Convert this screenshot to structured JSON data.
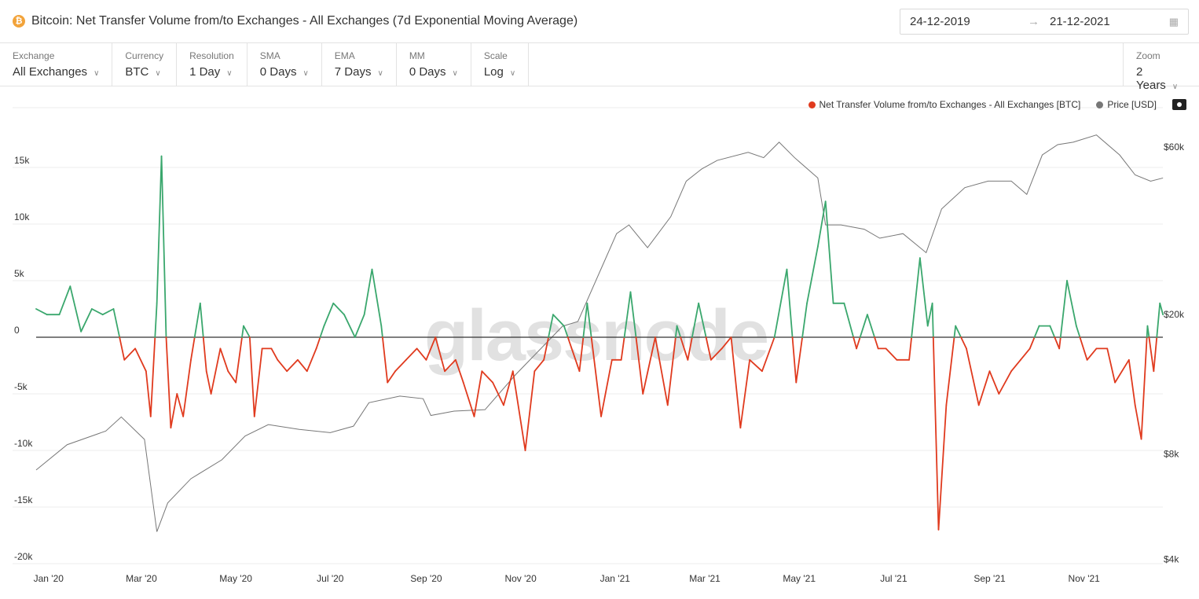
{
  "header": {
    "title": "Bitcoin: Net Transfer Volume from/to Exchanges - All Exchanges (7d Exponential Moving Average)",
    "coin_icon": "₿",
    "date_from": "24-12-2019",
    "date_to": "21-12-2021"
  },
  "toolbar": [
    {
      "label": "Exchange",
      "value": "All Exchanges"
    },
    {
      "label": "Currency",
      "value": "BTC"
    },
    {
      "label": "Resolution",
      "value": "1 Day"
    },
    {
      "label": "SMA",
      "value": "0 Days"
    },
    {
      "label": "EMA",
      "value": "7 Days"
    },
    {
      "label": "MM",
      "value": "0 Days"
    },
    {
      "label": "Scale",
      "value": "Log"
    }
  ],
  "zoom": {
    "label": "Zoom",
    "value": "2 Years"
  },
  "watermark": "glassnode",
  "colors": {
    "positive": "#3aa76d",
    "negative": "#e03a1e",
    "price": "#777777"
  },
  "chart_data": {
    "type": "line",
    "title": "Bitcoin: Net Transfer Volume from/to Exchanges - All Exchanges (7d Exponential Moving Average)",
    "x_unit": "days since 2019-12-24",
    "legend": [
      "Net Transfer Volume from/to Exchanges - All Exchanges [BTC]",
      "Price [USD]"
    ],
    "legend_placement": "top-right",
    "left_axis": {
      "ylim": [
        -20000,
        20000
      ],
      "ticks": [
        {
          "v": 15000,
          "label": "15k"
        },
        {
          "v": 10000,
          "label": "10k"
        },
        {
          "v": 5000,
          "label": "5k"
        },
        {
          "v": 0,
          "label": "0"
        },
        {
          "v": -5000,
          "label": "-5k"
        },
        {
          "v": -10000,
          "label": "-10k"
        },
        {
          "v": -15000,
          "label": "-15k"
        },
        {
          "v": -20000,
          "label": "-20k"
        }
      ]
    },
    "right_axis": {
      "scale": "log",
      "ticks": [
        {
          "v": 60000,
          "label": "$60k"
        },
        {
          "v": 20000,
          "label": "$20k"
        },
        {
          "v": 8000,
          "label": "$8k"
        },
        {
          "v": 4000,
          "label": "$4k"
        }
      ]
    },
    "x_ticks": [
      {
        "d": 8,
        "label": "Jan '20"
      },
      {
        "d": 68,
        "label": "Mar '20"
      },
      {
        "d": 129,
        "label": "May '20"
      },
      {
        "d": 190,
        "label": "Jul '20"
      },
      {
        "d": 252,
        "label": "Sep '20"
      },
      {
        "d": 313,
        "label": "Nov '20"
      },
      {
        "d": 374,
        "label": "Jan '21"
      },
      {
        "d": 432,
        "label": "Mar '21"
      },
      {
        "d": 493,
        "label": "May '21"
      },
      {
        "d": 554,
        "label": "Jul '21"
      },
      {
        "d": 616,
        "label": "Sep '21"
      },
      {
        "d": 677,
        "label": "Nov '21"
      }
    ],
    "net_volume": [
      [
        0,
        2500
      ],
      [
        7,
        2000
      ],
      [
        15,
        2000
      ],
      [
        22,
        4500
      ],
      [
        29,
        500
      ],
      [
        36,
        2500
      ],
      [
        43,
        2000
      ],
      [
        50,
        2500
      ],
      [
        57,
        -2000
      ],
      [
        64,
        -1000
      ],
      [
        71,
        -3000
      ],
      [
        74,
        -7000
      ],
      [
        78,
        3000
      ],
      [
        81,
        16000
      ],
      [
        84,
        0
      ],
      [
        87,
        -8000
      ],
      [
        91,
        -5000
      ],
      [
        95,
        -7000
      ],
      [
        100,
        -2000
      ],
      [
        106,
        3000
      ],
      [
        110,
        -3000
      ],
      [
        113,
        -5000
      ],
      [
        119,
        -1000
      ],
      [
        124,
        -3000
      ],
      [
        129,
        -4000
      ],
      [
        134,
        1000
      ],
      [
        138,
        0
      ],
      [
        141,
        -7000
      ],
      [
        146,
        -1000
      ],
      [
        152,
        -1000
      ],
      [
        156,
        -2000
      ],
      [
        162,
        -3000
      ],
      [
        169,
        -2000
      ],
      [
        175,
        -3000
      ],
      [
        181,
        -1000
      ],
      [
        186,
        1000
      ],
      [
        192,
        3000
      ],
      [
        199,
        2000
      ],
      [
        206,
        0
      ],
      [
        212,
        2000
      ],
      [
        217,
        6000
      ],
      [
        223,
        1000
      ],
      [
        227,
        -4000
      ],
      [
        232,
        -3000
      ],
      [
        239,
        -2000
      ],
      [
        246,
        -1000
      ],
      [
        252,
        -2000
      ],
      [
        258,
        0
      ],
      [
        264,
        -3000
      ],
      [
        271,
        -2000
      ],
      [
        276,
        -4000
      ],
      [
        283,
        -7000
      ],
      [
        288,
        -3000
      ],
      [
        295,
        -4000
      ],
      [
        302,
        -6000
      ],
      [
        308,
        -3000
      ],
      [
        316,
        -10000
      ],
      [
        322,
        -3000
      ],
      [
        328,
        -2000
      ],
      [
        334,
        2000
      ],
      [
        341,
        1000
      ],
      [
        346,
        -1000
      ],
      [
        351,
        -3000
      ],
      [
        356,
        3000
      ],
      [
        365,
        -7000
      ],
      [
        372,
        -2000
      ],
      [
        378,
        -2000
      ],
      [
        384,
        4000
      ],
      [
        392,
        -5000
      ],
      [
        400,
        0
      ],
      [
        408,
        -6000
      ],
      [
        414,
        1000
      ],
      [
        421,
        -2000
      ],
      [
        428,
        3000
      ],
      [
        436,
        -2000
      ],
      [
        443,
        -1000
      ],
      [
        449,
        0
      ],
      [
        455,
        -8000
      ],
      [
        461,
        -2000
      ],
      [
        469,
        -3000
      ],
      [
        477,
        0
      ],
      [
        485,
        6000
      ],
      [
        491,
        -4000
      ],
      [
        498,
        3000
      ],
      [
        505,
        8000
      ],
      [
        510,
        12000
      ],
      [
        515,
        3000
      ],
      [
        522,
        3000
      ],
      [
        530,
        -1000
      ],
      [
        537,
        2000
      ],
      [
        544,
        -1000
      ],
      [
        549,
        -1000
      ],
      [
        556,
        -2000
      ],
      [
        564,
        -2000
      ],
      [
        571,
        7000
      ],
      [
        576,
        1000
      ],
      [
        579,
        3000
      ],
      [
        583,
        -17000
      ],
      [
        588,
        -6000
      ],
      [
        594,
        1000
      ],
      [
        601,
        -1000
      ],
      [
        609,
        -6000
      ],
      [
        616,
        -3000
      ],
      [
        622,
        -5000
      ],
      [
        630,
        -3000
      ],
      [
        636,
        -2000
      ],
      [
        642,
        -1000
      ],
      [
        648,
        1000
      ],
      [
        655,
        1000
      ],
      [
        661,
        -1000
      ],
      [
        666,
        5000
      ],
      [
        672,
        1000
      ],
      [
        679,
        -2000
      ],
      [
        685,
        -1000
      ],
      [
        692,
        -1000
      ],
      [
        697,
        -4000
      ],
      [
        706,
        -2000
      ],
      [
        710,
        -6000
      ],
      [
        714,
        -9000
      ],
      [
        718,
        1000
      ],
      [
        722,
        -3000
      ],
      [
        726,
        3000
      ],
      [
        728,
        2000
      ]
    ],
    "price": [
      [
        0,
        7200
      ],
      [
        20,
        8500
      ],
      [
        45,
        9300
      ],
      [
        55,
        10200
      ],
      [
        70,
        8800
      ],
      [
        78,
        4800
      ],
      [
        85,
        5800
      ],
      [
        100,
        6800
      ],
      [
        120,
        7700
      ],
      [
        135,
        9000
      ],
      [
        150,
        9700
      ],
      [
        170,
        9400
      ],
      [
        190,
        9200
      ],
      [
        205,
        9600
      ],
      [
        215,
        11200
      ],
      [
        235,
        11700
      ],
      [
        250,
        11500
      ],
      [
        255,
        10300
      ],
      [
        270,
        10600
      ],
      [
        290,
        10700
      ],
      [
        310,
        13500
      ],
      [
        325,
        15800
      ],
      [
        340,
        18500
      ],
      [
        350,
        19100
      ],
      [
        365,
        27000
      ],
      [
        375,
        34000
      ],
      [
        383,
        36000
      ],
      [
        395,
        31000
      ],
      [
        410,
        38000
      ],
      [
        420,
        48000
      ],
      [
        430,
        52000
      ],
      [
        440,
        55000
      ],
      [
        460,
        58000
      ],
      [
        470,
        56000
      ],
      [
        480,
        62000
      ],
      [
        490,
        56000
      ],
      [
        505,
        49000
      ],
      [
        510,
        36000
      ],
      [
        520,
        36000
      ],
      [
        535,
        35000
      ],
      [
        545,
        33000
      ],
      [
        560,
        34000
      ],
      [
        575,
        30000
      ],
      [
        585,
        40000
      ],
      [
        600,
        46000
      ],
      [
        615,
        48000
      ],
      [
        630,
        48000
      ],
      [
        640,
        44000
      ],
      [
        650,
        57000
      ],
      [
        660,
        61000
      ],
      [
        670,
        62000
      ],
      [
        685,
        65000
      ],
      [
        700,
        57000
      ],
      [
        710,
        50000
      ],
      [
        720,
        48000
      ],
      [
        728,
        49000
      ]
    ]
  }
}
